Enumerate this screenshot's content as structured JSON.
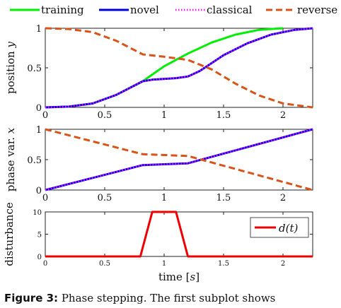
{
  "legend": {
    "items": [
      {
        "label": "training",
        "color": "#00ee00",
        "style": "solid"
      },
      {
        "label": "novel",
        "color": "#0000dd",
        "style": "solid"
      },
      {
        "label": "classical",
        "color": "#ff00ff",
        "style": "dotted"
      },
      {
        "label": "reverse",
        "color": "#d95319",
        "style": "dashed"
      }
    ]
  },
  "caption": {
    "label": "Figure 3:",
    "text": "Phase stepping. The first subplot shows"
  },
  "chart_data": [
    {
      "type": "line",
      "ylabel": "position y",
      "ylabel_main": "position",
      "ylabel_var": "y",
      "xlim": [
        0,
        2.25
      ],
      "ylim": [
        0,
        1
      ],
      "xticks": [
        "0",
        "0.5",
        "1",
        "1.5",
        "2"
      ],
      "yticks": [
        "0",
        "0.5",
        "1"
      ],
      "series": [
        {
          "name": "training",
          "color": "#00ee00",
          "style": "solid",
          "points": [
            [
              0,
              0
            ],
            [
              0.2,
              0.01
            ],
            [
              0.4,
              0.05
            ],
            [
              0.6,
              0.16
            ],
            [
              0.82,
              0.33
            ],
            [
              1.0,
              0.52
            ],
            [
              1.2,
              0.68
            ],
            [
              1.4,
              0.82
            ],
            [
              1.6,
              0.92
            ],
            [
              1.8,
              0.98
            ],
            [
              2.0,
              1.0
            ]
          ]
        },
        {
          "name": "novel",
          "color": "#0000dd",
          "style": "solid",
          "points": [
            [
              0,
              0
            ],
            [
              0.2,
              0.01
            ],
            [
              0.4,
              0.05
            ],
            [
              0.6,
              0.16
            ],
            [
              0.82,
              0.33
            ],
            [
              0.9,
              0.35
            ],
            [
              1.1,
              0.37
            ],
            [
              1.2,
              0.39
            ],
            [
              1.3,
              0.46
            ],
            [
              1.5,
              0.66
            ],
            [
              1.7,
              0.81
            ],
            [
              1.9,
              0.92
            ],
            [
              2.1,
              0.98
            ],
            [
              2.25,
              1.0
            ]
          ]
        },
        {
          "name": "classical",
          "color": "#ff00ff",
          "style": "dotted",
          "points": [
            [
              0,
              0
            ],
            [
              0.2,
              0.01
            ],
            [
              0.4,
              0.05
            ],
            [
              0.6,
              0.16
            ],
            [
              0.82,
              0.33
            ],
            [
              0.9,
              0.35
            ],
            [
              1.1,
              0.37
            ],
            [
              1.2,
              0.39
            ],
            [
              1.3,
              0.46
            ],
            [
              1.5,
              0.66
            ],
            [
              1.7,
              0.81
            ],
            [
              1.9,
              0.92
            ],
            [
              2.1,
              0.98
            ],
            [
              2.25,
              1.0
            ]
          ]
        },
        {
          "name": "reverse",
          "color": "#d95319",
          "style": "dashed",
          "points": [
            [
              0,
              1.0
            ],
            [
              0.2,
              0.99
            ],
            [
              0.4,
              0.95
            ],
            [
              0.6,
              0.84
            ],
            [
              0.82,
              0.67
            ],
            [
              1.0,
              0.64
            ],
            [
              1.2,
              0.6
            ],
            [
              1.4,
              0.48
            ],
            [
              1.6,
              0.3
            ],
            [
              1.8,
              0.15
            ],
            [
              2.0,
              0.05
            ],
            [
              2.25,
              0.0
            ]
          ]
        }
      ]
    },
    {
      "type": "line",
      "ylabel": "phase var. x",
      "ylabel_main": "phase var.",
      "ylabel_var": "x",
      "xlim": [
        0,
        2.25
      ],
      "ylim": [
        0,
        1
      ],
      "xticks": [
        "0",
        "0.5",
        "1",
        "1.5",
        "2"
      ],
      "yticks": [
        "0",
        "0.5",
        "1"
      ],
      "series": [
        {
          "name": "novel",
          "color": "#0000dd",
          "style": "solid",
          "points": [
            [
              0,
              0
            ],
            [
              0.82,
              0.41
            ],
            [
              1.2,
              0.44
            ],
            [
              2.25,
              1.0
            ]
          ]
        },
        {
          "name": "classical",
          "color": "#ff00ff",
          "style": "dotted",
          "points": [
            [
              0,
              0
            ],
            [
              0.82,
              0.41
            ],
            [
              1.2,
              0.44
            ],
            [
              2.25,
              1.0
            ]
          ]
        },
        {
          "name": "reverse",
          "color": "#d95319",
          "style": "dashed",
          "points": [
            [
              0,
              1.0
            ],
            [
              0.82,
              0.59
            ],
            [
              1.2,
              0.56
            ],
            [
              2.25,
              0.0
            ]
          ]
        }
      ]
    },
    {
      "type": "line",
      "ylabel": "disturbance",
      "xlabel": "time [s]",
      "xlabel_main": "time",
      "xlabel_unit": "s",
      "xlim": [
        0,
        2.25
      ],
      "ylim": [
        0,
        10
      ],
      "xticks": [
        "0",
        "0.5",
        "1",
        "1.5",
        "2"
      ],
      "yticks": [
        "0",
        "5",
        "10"
      ],
      "legend": "d(t)",
      "series": [
        {
          "name": "d(t)",
          "color": "#ee0000",
          "style": "solid",
          "points": [
            [
              0,
              0
            ],
            [
              0.8,
              0
            ],
            [
              0.9,
              10
            ],
            [
              1.1,
              10
            ],
            [
              1.2,
              0
            ],
            [
              2.25,
              0
            ]
          ]
        }
      ]
    }
  ]
}
